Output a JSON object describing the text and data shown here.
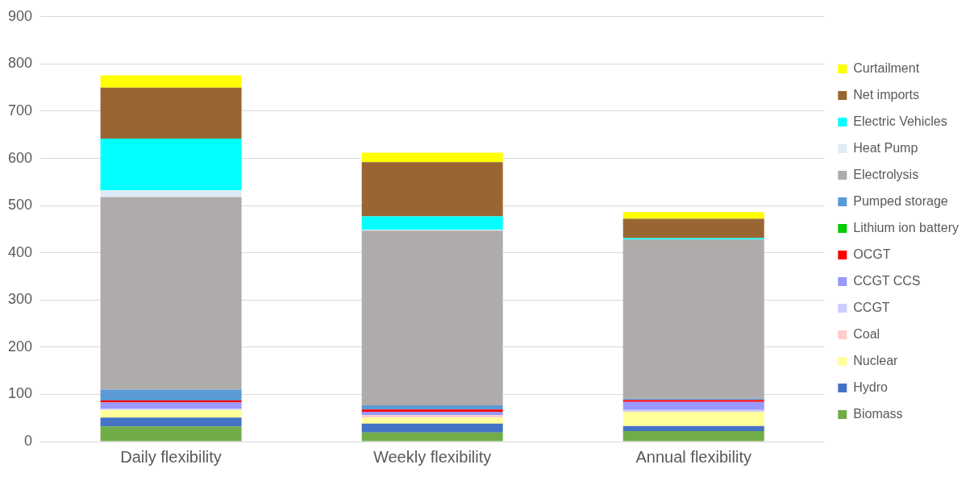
{
  "chart_data": {
    "type": "bar",
    "stacked": true,
    "categories": [
      "Daily flexibility",
      "Weekly flexibility",
      "Annual flexibility"
    ],
    "series": [
      {
        "name": "Biomass",
        "color": "#70ad47",
        "values": [
          32,
          19,
          22
        ]
      },
      {
        "name": "Hydro",
        "color": "#4472c4",
        "values": [
          19,
          19,
          11
        ]
      },
      {
        "name": "Nuclear",
        "color": "#ffff99",
        "values": [
          16,
          13,
          30
        ]
      },
      {
        "name": "Coal",
        "color": "#ffcccc",
        "values": [
          null,
          5,
          null
        ]
      },
      {
        "name": "CCGT",
        "color": "#ccccff",
        "values": [
          3,
          null,
          4
        ]
      },
      {
        "name": "CCGT CCS",
        "color": "#9999ff",
        "values": [
          13,
          7,
          17
        ]
      },
      {
        "name": "OCGT",
        "color": "#ff0000",
        "values": [
          4,
          5,
          4
        ]
      },
      {
        "name": "Lithium ion battery",
        "color": "#00cc00",
        "values": [
          0,
          0,
          0
        ]
      },
      {
        "name": "Pumped storage",
        "color": "#5b9bd5",
        "values": [
          23,
          9,
          3
        ]
      },
      {
        "name": "Electrolysis",
        "color": "#afabab",
        "values": [
          408,
          370,
          337
        ]
      },
      {
        "name": "Heat Pump",
        "color": "#deebf7",
        "values": [
          14,
          2,
          null
        ]
      },
      {
        "name": "Electric Vehicles",
        "color": "#00ffff",
        "values": [
          110,
          28,
          3
        ]
      },
      {
        "name": "Net imports",
        "color": "#996633",
        "values": [
          108,
          115,
          41
        ]
      },
      {
        "name": "Curtailment",
        "color": "#ffff00",
        "values": [
          26,
          20,
          14
        ]
      }
    ],
    "ylim": [
      0,
      900
    ],
    "yticks": [
      0,
      100,
      200,
      300,
      400,
      500,
      600,
      700,
      800,
      900
    ],
    "grid": "y",
    "legend": "right"
  }
}
